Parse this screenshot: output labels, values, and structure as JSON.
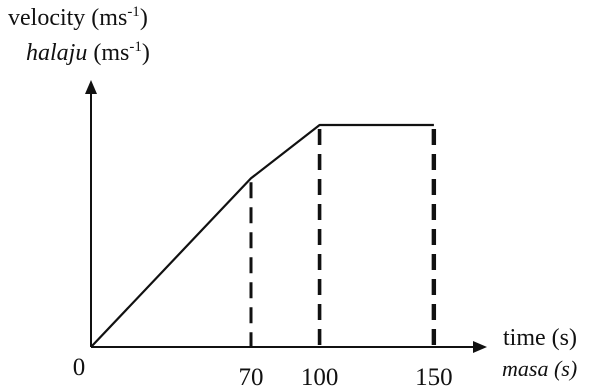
{
  "chart_data": {
    "type": "line",
    "y_label": {
      "line1_prefix": "velocity (ms",
      "line1_exponent": "-1",
      "line1_suffix": ")",
      "line2_word": "halaju",
      "line2_prefix": " (ms",
      "line2_exponent": "-1",
      "line2_suffix": ")"
    },
    "x_label": {
      "line1": "time (s)",
      "line2": "masa (s)"
    },
    "origin_label": "0",
    "x_ticks": [
      "70",
      "100",
      "150"
    ],
    "series": [
      {
        "points": [
          {
            "x": 0,
            "y": 0
          },
          {
            "x": 70,
            "y": 0.76
          },
          {
            "x": 100,
            "y": 1.0
          },
          {
            "x": 150,
            "y": 1.0
          }
        ]
      }
    ],
    "dashed_verticals": [
      70,
      100,
      150
    ],
    "y_unlabeled": true,
    "xlim": [
      0,
      175
    ],
    "grid": false,
    "colors": {
      "line": "#111111",
      "axis": "#111111"
    }
  }
}
